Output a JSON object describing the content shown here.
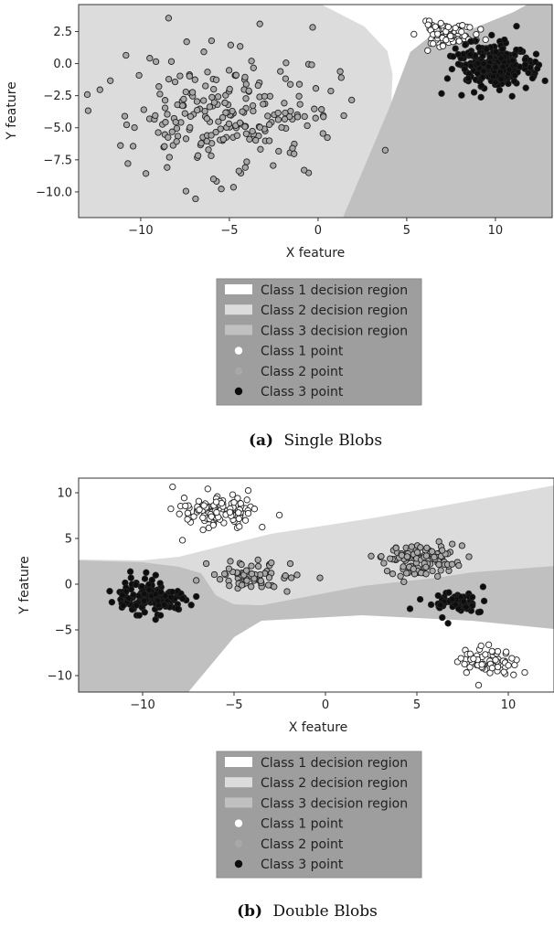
{
  "colors": {
    "class1_region": "#ffffff",
    "class2_region": "#dcdcdc",
    "class3_region": "#c0c0c0",
    "class1_point": "#ffffff",
    "class2_point": "#a8a8a8",
    "class3_point": "#0d0d0d",
    "legend_bg": "#9e9e9e",
    "point_edge": "#222222"
  },
  "chart_data": [
    {
      "type": "scatter",
      "panel": "a",
      "caption_label": "(a)",
      "caption_text": "Single Blobs",
      "xlabel": "X feature",
      "ylabel": "Y feature",
      "xlim": [
        -13.5,
        13.2
      ],
      "ylim": [
        -12.0,
        4.6
      ],
      "xticks": [
        -10,
        -5,
        0,
        5,
        10
      ],
      "xtick_labels": [
        "−10",
        "−5",
        "0",
        "5",
        "10"
      ],
      "yticks": [
        2.5,
        0.0,
        -2.5,
        -5.0,
        -7.5,
        -10.0
      ],
      "ytick_labels": [
        "2.5",
        "0.0",
        "−2.5",
        "−5.0",
        "−7.5",
        "−10.0"
      ],
      "grid": false,
      "legend_placement": "below",
      "legend": [
        {
          "label": "Class 1 decision region",
          "kind": "region",
          "class": 1
        },
        {
          "label": "Class 2 decision region",
          "kind": "region",
          "class": 2
        },
        {
          "label": "Class 3 decision region",
          "kind": "region",
          "class": 3
        },
        {
          "label": "Class 1 point",
          "kind": "point",
          "class": 1
        },
        {
          "label": "Class 2 point",
          "kind": "point",
          "class": 2
        },
        {
          "label": "Class 3 point",
          "kind": "point",
          "class": 3
        }
      ],
      "regions": [
        {
          "class": 2,
          "polygon": [
            [
              -13.5,
              4.6
            ],
            [
              0.2,
              4.6
            ],
            [
              2.6,
              2.9
            ],
            [
              3.9,
              1.0
            ],
            [
              4.2,
              -0.8
            ],
            [
              4.1,
              -3.9
            ],
            [
              3.8,
              -6.4
            ],
            [
              2.2,
              -10.0
            ],
            [
              1.7,
              -12.0
            ],
            [
              -13.5,
              -12.0
            ]
          ]
        },
        {
          "class": 3,
          "polygon": [
            [
              4.0,
              -3.5
            ],
            [
              4.4,
              -2.0
            ],
            [
              5.2,
              0.9
            ],
            [
              6.2,
              2.0
            ],
            [
              7.6,
              2.1
            ],
            [
              9.2,
              3.0
            ],
            [
              11.0,
              4.0
            ],
            [
              11.8,
              4.6
            ],
            [
              13.2,
              4.6
            ],
            [
              13.2,
              -12.0
            ],
            [
              1.4,
              -12.0
            ]
          ]
        }
      ],
      "clusters": [
        {
          "class": 1,
          "center": [
            7.3,
            2.3
          ],
          "spread": [
            0.8,
            0.45
          ],
          "count": 80,
          "seed": 11
        },
        {
          "class": 3,
          "center": [
            9.8,
            -0.2
          ],
          "spread": [
            1.1,
            0.95
          ],
          "count": 230,
          "seed": 23
        },
        {
          "class": 2,
          "center": [
            -4.9,
            -3.9
          ],
          "spread": [
            3.0,
            2.4
          ],
          "count": 230,
          "seed": 37
        }
      ]
    },
    {
      "type": "scatter",
      "panel": "b",
      "caption_label": "(b)",
      "caption_text": "Double Blobs",
      "xlabel": "X feature",
      "ylabel": "Y feature",
      "xlim": [
        -13.5,
        12.5
      ],
      "ylim": [
        -11.8,
        11.6
      ],
      "xticks": [
        -10,
        -5,
        0,
        5,
        10
      ],
      "xtick_labels": [
        "−10",
        "−5",
        "0",
        "5",
        "10"
      ],
      "yticks": [
        10,
        5,
        0,
        -5,
        -10
      ],
      "ytick_labels": [
        "10",
        "5",
        "0",
        "−5",
        "−10"
      ],
      "grid": false,
      "legend_placement": "below",
      "legend": [
        {
          "label": "Class 1 decision region",
          "kind": "region",
          "class": 1
        },
        {
          "label": "Class 2 decision region",
          "kind": "region",
          "class": 2
        },
        {
          "label": "Class 3 decision region",
          "kind": "region",
          "class": 3
        },
        {
          "label": "Class 1 point",
          "kind": "point",
          "class": 1
        },
        {
          "label": "Class 2 point",
          "kind": "point",
          "class": 2
        },
        {
          "label": "Class 3 point",
          "kind": "point",
          "class": 3
        }
      ],
      "regions": [
        {
          "class": 2,
          "polygon": [
            [
              -13.5,
              2.7
            ],
            [
              -10.0,
              2.6
            ],
            [
              -8.0,
              3.0
            ],
            [
              -3.0,
              5.5
            ],
            [
              2.5,
              7.2
            ],
            [
              6.5,
              8.6
            ],
            [
              12.5,
              10.8
            ],
            [
              12.5,
              2.0
            ],
            [
              8.0,
              1.3
            ],
            [
              6.0,
              0.7
            ],
            [
              2.0,
              -0.2
            ],
            [
              -3.5,
              -2.3
            ],
            [
              -5.0,
              -2.2
            ],
            [
              -6.0,
              -1.2
            ],
            [
              -7.5,
              1.0
            ],
            [
              -13.5,
              2.0
            ]
          ]
        },
        {
          "class": 3,
          "polygon": [
            [
              -13.5,
              2.6
            ],
            [
              -10.0,
              2.4
            ],
            [
              -8.0,
              1.9
            ],
            [
              -6.8,
              1.2
            ],
            [
              -6.0,
              -1.2
            ],
            [
              -5.0,
              -2.2
            ],
            [
              -3.5,
              -2.3
            ],
            [
              2.0,
              -0.2
            ],
            [
              6.0,
              0.7
            ],
            [
              8.0,
              1.3
            ],
            [
              12.5,
              2.0
            ],
            [
              12.5,
              -4.9
            ],
            [
              8.0,
              -4.0
            ],
            [
              2.0,
              -3.4
            ],
            [
              -3.5,
              -4.0
            ],
            [
              -5.0,
              -5.8
            ],
            [
              -7.5,
              -11.8
            ],
            [
              -13.5,
              -11.8
            ]
          ]
        }
      ],
      "clusters": [
        {
          "class": 1,
          "center": [
            -5.8,
            8.0
          ],
          "spread": [
            1.0,
            0.95
          ],
          "count": 120,
          "seed": 41
        },
        {
          "class": 1,
          "center": [
            9.0,
            -8.6
          ],
          "spread": [
            0.85,
            0.85
          ],
          "count": 70,
          "seed": 43
        },
        {
          "class": 2,
          "center": [
            -3.8,
            0.8
          ],
          "spread": [
            1.1,
            0.8
          ],
          "count": 70,
          "seed": 47
        },
        {
          "class": 2,
          "center": [
            5.2,
            2.7
          ],
          "spread": [
            1.0,
            0.85
          ],
          "count": 120,
          "seed": 53
        },
        {
          "class": 3,
          "center": [
            -9.6,
            -1.4
          ],
          "spread": [
            1.0,
            0.95
          ],
          "count": 140,
          "seed": 59
        },
        {
          "class": 3,
          "center": [
            7.0,
            -1.9
          ],
          "spread": [
            0.9,
            0.7
          ],
          "count": 60,
          "seed": 61
        }
      ]
    }
  ]
}
